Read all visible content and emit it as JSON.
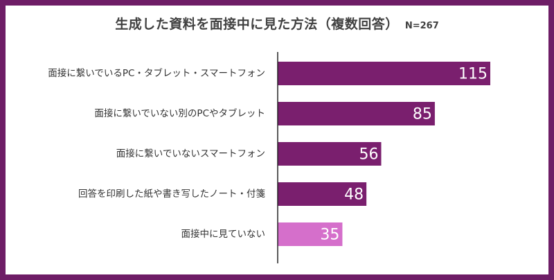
{
  "chart_data": {
    "type": "bar",
    "orientation": "horizontal",
    "title": "生成した資料を面接中に見た方法（複数回答）",
    "subtitle": "N=267",
    "categories": [
      "面接に繋いでいるPC・タブレット・スマートフォン",
      "面接に繋いでいない別のPCやタブレット",
      "面接に繋いでいないスマートフォン",
      "回答を印刷した紙や書き写したノート・付箋",
      "面接中に見ていない"
    ],
    "values": [
      115,
      85,
      56,
      48,
      35
    ],
    "value_labels": [
      "115",
      "85",
      "56",
      "48",
      "35"
    ],
    "bar_colors": [
      "#7a1f6e",
      "#7a1f6e",
      "#7a1f6e",
      "#7a1f6e",
      "#d56fcb"
    ],
    "xlim": [
      0,
      130
    ],
    "grid": false,
    "legend": "none"
  },
  "colors": {
    "frame": "#6e1d66",
    "bar": "#7a1f6e",
    "bar_highlight": "#d56fcb",
    "axis": "#222222",
    "text": "#404040"
  }
}
